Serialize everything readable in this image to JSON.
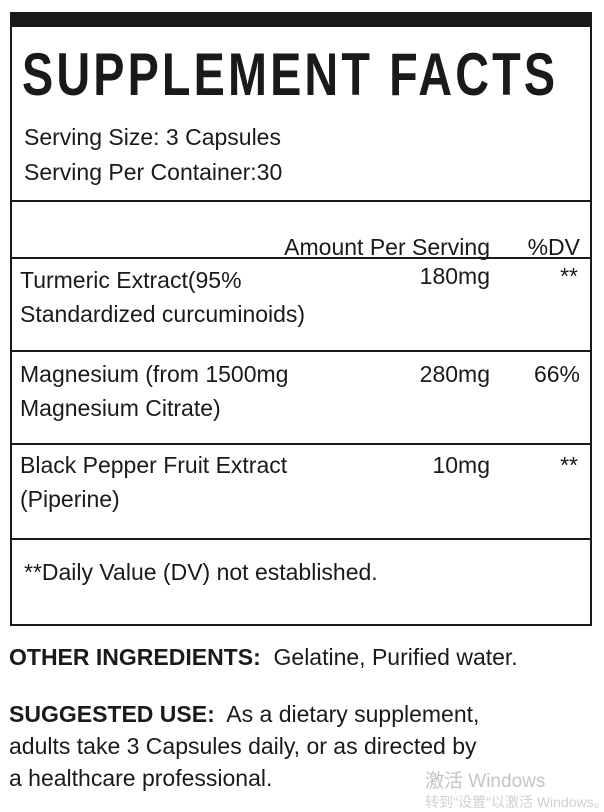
{
  "title": "SUPPLEMENT FACTS",
  "serving_size": "Serving Size: 3 Capsules",
  "servings_per_container": "Serving Per Container:30",
  "table": {
    "header": {
      "amount": "Amount Per Serving",
      "dv": "%DV"
    },
    "rows": [
      {
        "name_line1": "Turmeric Extract(95%",
        "name_line2": "Standardized curcuminoids)",
        "amount": "180mg",
        "dv": "**"
      },
      {
        "name_line1": "Magnesium (from 1500mg",
        "name_line2": "Magnesium Citrate)",
        "amount": "280mg",
        "dv": "66%"
      },
      {
        "name_line1": "Black Pepper Fruit Extract",
        "name_line2": "(Piperine)",
        "amount": "10mg",
        "dv": "**"
      }
    ],
    "footnote": "**Daily Value (DV) not established."
  },
  "other_ingredients": {
    "label": "OTHER INGREDIENTS:",
    "value": "Gelatine, Purified water."
  },
  "suggested_use": {
    "label": "SUGGESTED USE:",
    "line1": "As a dietary supplement,",
    "line2": "adults take 3 Capsules daily,  or as directed by",
    "line3": "a healthcare professional."
  },
  "watermark": {
    "line1": "激活 Windows",
    "line2": "转到\"设置\"以激活 Windows。"
  }
}
